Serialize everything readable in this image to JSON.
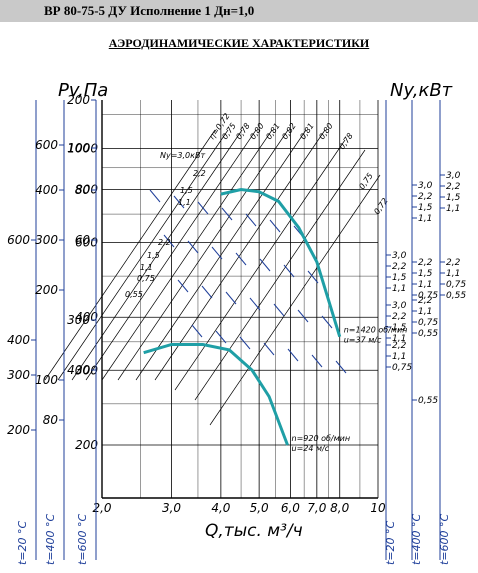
{
  "header": {
    "title": "ВР 80-75-5 ДУ Исполнение 1 Дн=1,0"
  },
  "subtitle": "АЭРОДИНАМИЧЕСКИЕ ХАРАКТЕРИСТИКИ",
  "chart_data": {
    "type": "line",
    "title": "АЭРОДИНАМИЧЕСКИЕ ХАРАКТЕРИСТИКИ",
    "xlabel": "Q,тыс. м³/ч",
    "ylabel": "Pv,Па",
    "y2label": "Ny,кВт",
    "x_scale": "log",
    "y_scale": "log",
    "xlim": [
      2.0,
      10
    ],
    "ylim": [
      150,
      1300
    ],
    "x_ticks": [
      "2,0",
      "3,0",
      "4,0",
      "5,0",
      "6,0",
      "7,0",
      "8,0",
      "10"
    ],
    "y_ticks_main": [
      200,
      300,
      400,
      600,
      800,
      1000
    ],
    "y_ticks_main_labels": [
      "200",
      "300",
      "400",
      "600",
      "800",
      "1000"
    ],
    "left_scales": [
      {
        "label": "t=20 °C",
        "ticks": [
          "200",
          "300",
          "400",
          "600"
        ]
      },
      {
        "label": "t=400 °C",
        "ticks": [
          "80",
          "100",
          "200",
          "300",
          "400",
          "600"
        ]
      },
      {
        "label": "t=600 °C",
        "ticks": [
          "60",
          "80",
          "100",
          "200",
          "300",
          "400"
        ]
      }
    ],
    "right_scales": [
      {
        "label": "t=20 °C",
        "groups": [
          [
            "3,0",
            "2,2",
            "1,5",
            "1,1"
          ],
          [
            "3,0",
            "2,2",
            "1,5",
            "1,1"
          ],
          [
            "2,2",
            "1,1",
            "0,75"
          ]
        ]
      },
      {
        "label": "t=400 °C",
        "groups": [
          [
            "3,0",
            "2,2",
            "1,5",
            "1,1"
          ],
          [
            "2,2",
            "1,5",
            "1,1",
            "0,75"
          ],
          [
            "2,2",
            "1,1",
            "0,75",
            "0,55"
          ],
          [
            "0,55"
          ]
        ]
      },
      {
        "label": "t=600 °C",
        "groups": [
          [
            "3,0",
            "2,2",
            "1,5",
            "1,1"
          ],
          [
            "2,2",
            "1,1",
            "0,75",
            "0,55"
          ]
        ]
      }
    ],
    "efficiency_labels": [
      "η=0,72",
      "0,75",
      "0,78",
      "0,80",
      "0,81",
      "0,82",
      "0,81",
      "0,80",
      "0,78",
      "0,75",
      "0,72"
    ],
    "power_labels": [
      "Ny=3,0кВт",
      "2,2",
      "1,5",
      "1,1",
      "2,2",
      "1,5",
      "1,1",
      "0,75",
      "0,55"
    ],
    "series": [
      {
        "name": "n=1420 об/мин u=37 м/с",
        "x": [
          4.0,
          4.5,
          5.0,
          5.6,
          6.3,
          7.0,
          8.0
        ],
        "y": [
          780,
          800,
          790,
          750,
          650,
          540,
          360
        ]
      },
      {
        "name": "n=920 об/мин u=24 м/с",
        "x": [
          2.55,
          3.0,
          3.6,
          4.2,
          4.8,
          5.3,
          5.9
        ],
        "y": [
          330,
          345,
          345,
          335,
          300,
          260,
          200
        ]
      }
    ],
    "grid": true
  }
}
